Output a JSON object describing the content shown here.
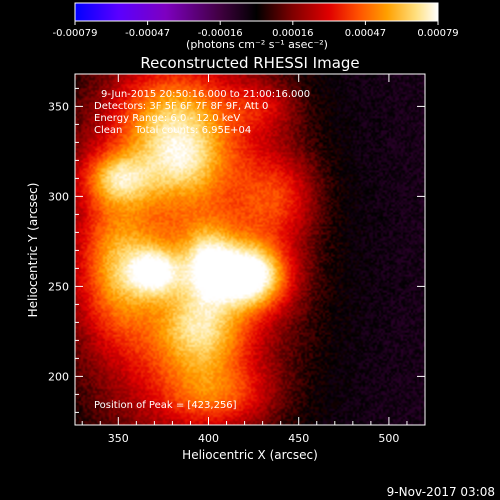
{
  "colorbar": {
    "ticks": [
      "-0.00079",
      "-0.00047",
      "-0.00016",
      "0.00016",
      "0.00047",
      "0.00079"
    ],
    "unit_label": "(photons cm⁻² s⁻¹ asec⁻²)"
  },
  "title": "Reconstructed RHESSI Image",
  "annotations": {
    "time": "9-Jun-2015 20:50:16.000 to 21:00:16.000",
    "detectors": "Detectors: 3F 5F 6F 7F 8F 9F, Att 0",
    "energy": "Energy Range: 6.0 - 12.0 keV",
    "clean": "Clean    Total counts: 6.95E+04",
    "peak": "Position of Peak = [423,256]"
  },
  "footer_date": "9-Nov-2017 03:08",
  "chart_data": {
    "type": "heatmap",
    "title": "Reconstructed RHESSI Image",
    "xlabel": "Heliocentric X (arcsec)",
    "ylabel": "Heliocentric Y (arcsec)",
    "xlim": [
      326,
      520
    ],
    "ylim": [
      173,
      368
    ],
    "xticks": [
      350,
      400,
      450,
      500
    ],
    "yticks": [
      200,
      250,
      300,
      350
    ],
    "zlim": [
      -0.00079,
      0.00079
    ],
    "colormap": [
      "#0000ff",
      "#5a00ff",
      "#7e00c0",
      "#400040",
      "#000000",
      "#800000",
      "#e00000",
      "#ff5000",
      "#ffa000",
      "#ffe080",
      "#ffffff"
    ],
    "peak_position": [
      423,
      256
    ],
    "sources": [
      {
        "x": 423,
        "y": 256,
        "sx": 14,
        "sy": 12,
        "amp": 0.00079
      },
      {
        "x": 370,
        "y": 258,
        "sx": 10,
        "sy": 9,
        "amp": 0.00056
      },
      {
        "x": 400,
        "y": 262,
        "sx": 10,
        "sy": 14,
        "amp": 0.0005
      },
      {
        "x": 395,
        "y": 225,
        "sx": 16,
        "sy": 16,
        "amp": 0.00044
      },
      {
        "x": 350,
        "y": 310,
        "sx": 13,
        "sy": 10,
        "amp": 0.00046
      },
      {
        "x": 385,
        "y": 320,
        "sx": 16,
        "sy": 14,
        "amp": 0.0004
      },
      {
        "x": 380,
        "y": 345,
        "sx": 20,
        "sy": 16,
        "amp": 0.00036
      },
      {
        "x": 350,
        "y": 260,
        "sx": 14,
        "sy": 24,
        "amp": 0.00034
      },
      {
        "x": 405,
        "y": 190,
        "sx": 20,
        "sy": 12,
        "amp": 0.0003
      },
      {
        "x": 440,
        "y": 300,
        "sx": 14,
        "sy": 16,
        "amp": 0.00024
      },
      {
        "x": 430,
        "y": 350,
        "sx": 14,
        "sy": 10,
        "amp": 0.00018
      }
    ],
    "background": {
      "value": -0.00022,
      "note": "negative purple region surrounding the source to the east and south-west"
    }
  }
}
